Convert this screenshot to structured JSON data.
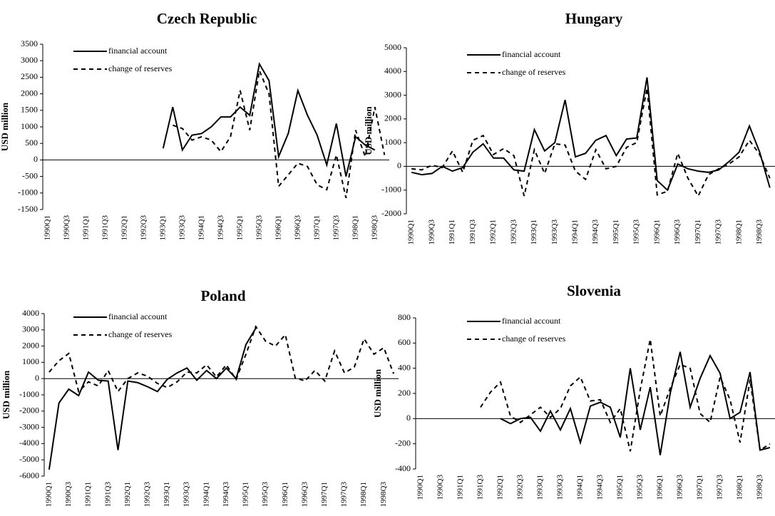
{
  "chart_data": [
    {
      "type": "line",
      "title": "Czech Republic",
      "ylabel": "USD million",
      "categories": [
        "1990Q1",
        null,
        "1990Q3",
        null,
        "1991Q1",
        null,
        "1991Q3",
        null,
        "1992Q1",
        null,
        "1992Q3",
        null,
        "1993Q1",
        null,
        "1993Q3",
        null,
        "1994Q1",
        null,
        "1994Q3",
        null,
        "1995Q1",
        null,
        "1995Q3",
        null,
        "1996Q1",
        null,
        "1996Q3",
        null,
        "1997Q1",
        null,
        "1997Q3",
        null,
        "1998Q1",
        null,
        "1998Q3",
        null
      ],
      "series": [
        {
          "name": "financial account",
          "color": "#000000",
          "dash": "solid",
          "values": [
            null,
            null,
            null,
            null,
            null,
            null,
            null,
            null,
            null,
            null,
            null,
            null,
            350,
            1600,
            300,
            750,
            800,
            1000,
            1300,
            1300,
            1600,
            1350,
            2900,
            2400,
            100,
            800,
            2100,
            1350,
            750,
            -150,
            1100,
            -500,
            700,
            450,
            300,
            null
          ]
        },
        {
          "name": "change of reserves",
          "color": "#000000",
          "dash": "dashed",
          "values": [
            null,
            null,
            null,
            null,
            null,
            null,
            null,
            null,
            null,
            null,
            null,
            null,
            null,
            1050,
            950,
            600,
            700,
            600,
            250,
            700,
            2100,
            900,
            2700,
            2000,
            -800,
            -450,
            -100,
            -200,
            -750,
            -900,
            150,
            -1150,
            900,
            100,
            1600,
            150
          ]
        }
      ],
      "ylim": [
        -1500,
        3500
      ],
      "yticks": [
        -1500,
        -1000,
        -500,
        0,
        500,
        1000,
        1500,
        2000,
        2500,
        3000,
        3500
      ],
      "grid": false,
      "legend": "upper left"
    },
    {
      "type": "line",
      "title": "Hungary",
      "ylabel": "USD million",
      "categories": [
        "1990Q1",
        null,
        "1990Q3",
        null,
        "1991Q1",
        null,
        "1991Q3",
        null,
        "1992Q1",
        null,
        "1992Q3",
        null,
        "1993Q1",
        null,
        "1993Q3",
        null,
        "1994Q1",
        null,
        "1994Q3",
        null,
        "1995Q1",
        null,
        "1995Q3",
        null,
        "1996Q1",
        null,
        "1996Q3",
        null,
        "1997Q1",
        null,
        "1997Q3",
        null,
        "1998Q1",
        null,
        "1998Q3",
        null
      ],
      "series": [
        {
          "name": "financial account",
          "color": "#000000",
          "dash": "solid",
          "values": [
            -250,
            -350,
            -300,
            0,
            -200,
            -50,
            600,
            950,
            350,
            350,
            -150,
            -200,
            1550,
            650,
            1000,
            2800,
            400,
            550,
            1100,
            1300,
            450,
            1150,
            1200,
            3750,
            -600,
            -1000,
            100,
            -100,
            -200,
            -250,
            -150,
            200,
            600,
            1700,
            600,
            -900
          ]
        },
        {
          "name": "change of reserves",
          "color": "#000000",
          "dash": "dashed",
          "values": [
            -100,
            -150,
            50,
            -50,
            650,
            -250,
            1100,
            1300,
            500,
            750,
            450,
            -1250,
            700,
            -300,
            950,
            900,
            -200,
            -550,
            700,
            -100,
            0,
            800,
            1000,
            3300,
            -1200,
            -1050,
            550,
            -500,
            -1250,
            -350,
            -100,
            100,
            400,
            1100,
            500,
            -500
          ]
        }
      ],
      "ylim": [
        -2000,
        5000
      ],
      "yticks": [
        -2000,
        -1000,
        0,
        1000,
        2000,
        3000,
        4000,
        5000
      ],
      "grid": false,
      "legend": "upper left"
    },
    {
      "type": "line",
      "title": "Poland",
      "ylabel": "USD million",
      "categories": [
        "1990Q1",
        null,
        "1990Q3",
        null,
        "1991Q1",
        null,
        "1991Q3",
        null,
        "1992Q1",
        null,
        "1992Q3",
        null,
        "1993Q1",
        null,
        "1993Q3",
        null,
        "1994Q1",
        null,
        "1994Q3",
        null,
        "1995Q1",
        null,
        "1995Q3",
        null,
        "1996Q1",
        null,
        "1996Q3",
        null,
        "1997Q1",
        null,
        "1997Q3",
        null,
        "1998Q1",
        null,
        "1998Q3",
        null
      ],
      "series": [
        {
          "name": "financial account",
          "color": "#000000",
          "dash": "solid",
          "values": [
            -5600,
            -1500,
            -650,
            -1050,
            400,
            -100,
            -150,
            -4400,
            -150,
            -250,
            -500,
            -800,
            -50,
            350,
            650,
            -100,
            500,
            0,
            650,
            0,
            2100,
            3100,
            null,
            null,
            null,
            null,
            null,
            null,
            null,
            null,
            null,
            null,
            null,
            null,
            null,
            null
          ]
        },
        {
          "name": "change of reserves",
          "color": "#000000",
          "dash": "dashed",
          "values": [
            400,
            1100,
            1550,
            -800,
            -200,
            -450,
            500,
            -800,
            0,
            350,
            150,
            -300,
            -550,
            -200,
            400,
            350,
            850,
            100,
            850,
            -50,
            1500,
            3200,
            2300,
            2000,
            2700,
            50,
            -150,
            500,
            -150,
            1700,
            350,
            700,
            2450,
            1500,
            1900,
            300
          ]
        }
      ],
      "ylim": [
        -6000,
        4000
      ],
      "yticks": [
        -6000,
        -5000,
        -4000,
        -3000,
        -2000,
        -1000,
        0,
        1000,
        2000,
        3000,
        4000
      ],
      "grid": false,
      "legend": "upper left"
    },
    {
      "type": "line",
      "title": "Slovenia",
      "ylabel": "USD million",
      "categories": [
        "1990Q1",
        null,
        "1990Q3",
        null,
        "1991Q1",
        null,
        "1991Q3",
        null,
        "1992Q1",
        null,
        "1992Q3",
        null,
        "1993Q1",
        null,
        "1993Q3",
        null,
        "1994Q1",
        null,
        "1994Q3",
        null,
        "1995Q1",
        null,
        "1995Q3",
        null,
        "1996Q1",
        null,
        "1996Q3",
        null,
        "1997Q1",
        null,
        "1997Q3",
        null,
        "1998Q1",
        null,
        "1998Q3",
        null
      ],
      "series": [
        {
          "name": "financial account",
          "color": "#000000",
          "dash": "solid",
          "values": [
            null,
            null,
            null,
            null,
            null,
            null,
            null,
            null,
            0,
            -40,
            0,
            10,
            -100,
            60,
            -90,
            80,
            -190,
            100,
            130,
            90,
            -150,
            400,
            -90,
            250,
            -290,
            200,
            530,
            90,
            320,
            500,
            360,
            0,
            50,
            370,
            -250,
            -230
          ]
        },
        {
          "name": "change of reserves",
          "color": "#000000",
          "dash": "dashed",
          "values": [
            null,
            null,
            null,
            null,
            null,
            null,
            90,
            210,
            290,
            20,
            -30,
            30,
            90,
            10,
            80,
            260,
            330,
            140,
            150,
            -30,
            80,
            -260,
            230,
            630,
            20,
            240,
            430,
            400,
            40,
            -30,
            330,
            150,
            -190,
            310,
            -250,
            -200
          ]
        }
      ],
      "ylim": [
        -400,
        800
      ],
      "yticks": [
        -400,
        -200,
        0,
        200,
        400,
        600,
        800
      ],
      "grid": false,
      "legend": "upper left"
    }
  ]
}
